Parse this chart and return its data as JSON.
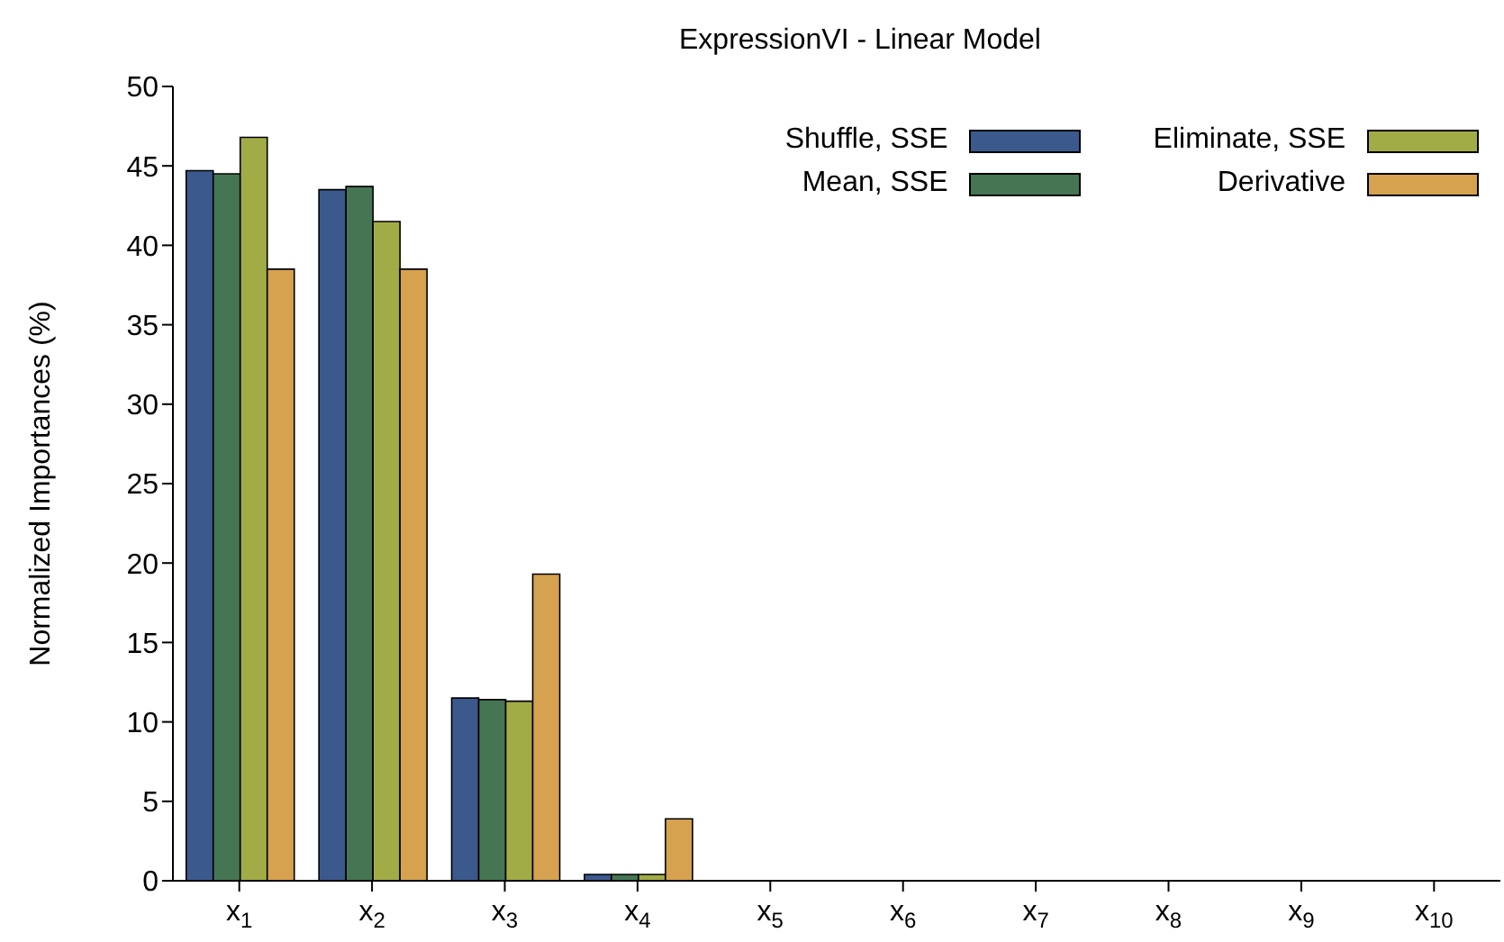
{
  "chart_data": {
    "type": "bar",
    "title": "ExpressionVI - Linear Model",
    "ylabel": "Normalized Importances (%)",
    "categories": [
      "x$_{1}$",
      "x$_{2}$",
      "x$_{3}$",
      "x$_{4}$",
      "x$_{5}$",
      "x$_{6}$",
      "x$_{7}$",
      "x$_{8}$",
      "x$_{9}$",
      "x$_{10}$"
    ],
    "series": [
      {
        "name": "Shuffle, SSE",
        "color": "#3c598e",
        "values": [
          44.7,
          43.5,
          11.5,
          0.4,
          0,
          0,
          0,
          0,
          0,
          0
        ]
      },
      {
        "name": "Mean, SSE",
        "color": "#467553",
        "values": [
          44.5,
          43.7,
          11.4,
          0.4,
          0,
          0,
          0,
          0,
          0,
          0
        ]
      },
      {
        "name": "Eliminate, SSE",
        "color": "#a2ac47",
        "values": [
          46.8,
          41.5,
          11.3,
          0.4,
          0,
          0,
          0,
          0,
          0,
          0
        ]
      },
      {
        "name": "Derivative",
        "color": "#d6a24f",
        "values": [
          38.5,
          38.5,
          19.3,
          3.9,
          0,
          0,
          0,
          0,
          0,
          0
        ]
      }
    ],
    "ylim": [
      0,
      50
    ],
    "yticks": [
      0,
      5,
      10,
      15,
      20,
      25,
      30,
      35,
      40,
      45,
      50
    ],
    "grid": false,
    "legend": "top right"
  }
}
